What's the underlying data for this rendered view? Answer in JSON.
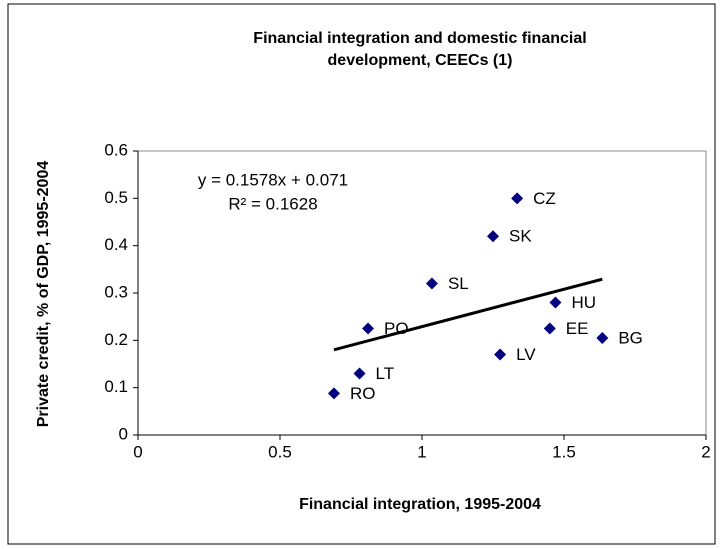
{
  "chart_data": {
    "type": "scatter",
    "title": "Financial integration and domestic financial development, CEECs (1)",
    "x_label": "Financial integration, 1995-2004",
    "y_label": "Private credit, % of GDP, 1995-2004",
    "categories": [
      "CZ",
      "SK",
      "SL",
      "HU",
      "EE",
      "BG",
      "LV",
      "PO",
      "LT",
      "RO"
    ],
    "x": [
      1.335,
      1.25,
      1.035,
      1.47,
      1.45,
      1.635,
      1.275,
      0.81,
      0.78,
      0.69
    ],
    "values": [
      0.5,
      0.42,
      0.32,
      0.28,
      0.225,
      0.205,
      0.17,
      0.225,
      0.13,
      0.088
    ],
    "color": "#000080",
    "annotations": [
      "y = 0.1578x + 0.071",
      "R² = 0.1628"
    ],
    "xlim": [
      0,
      2
    ],
    "xticks": [
      0,
      0.5,
      1,
      1.5,
      2
    ],
    "ylim": [
      0,
      0.6
    ],
    "yticks": [
      0,
      0.1,
      0.2,
      0.3,
      0.4,
      0.5,
      0.6
    ],
    "grid": false
  }
}
